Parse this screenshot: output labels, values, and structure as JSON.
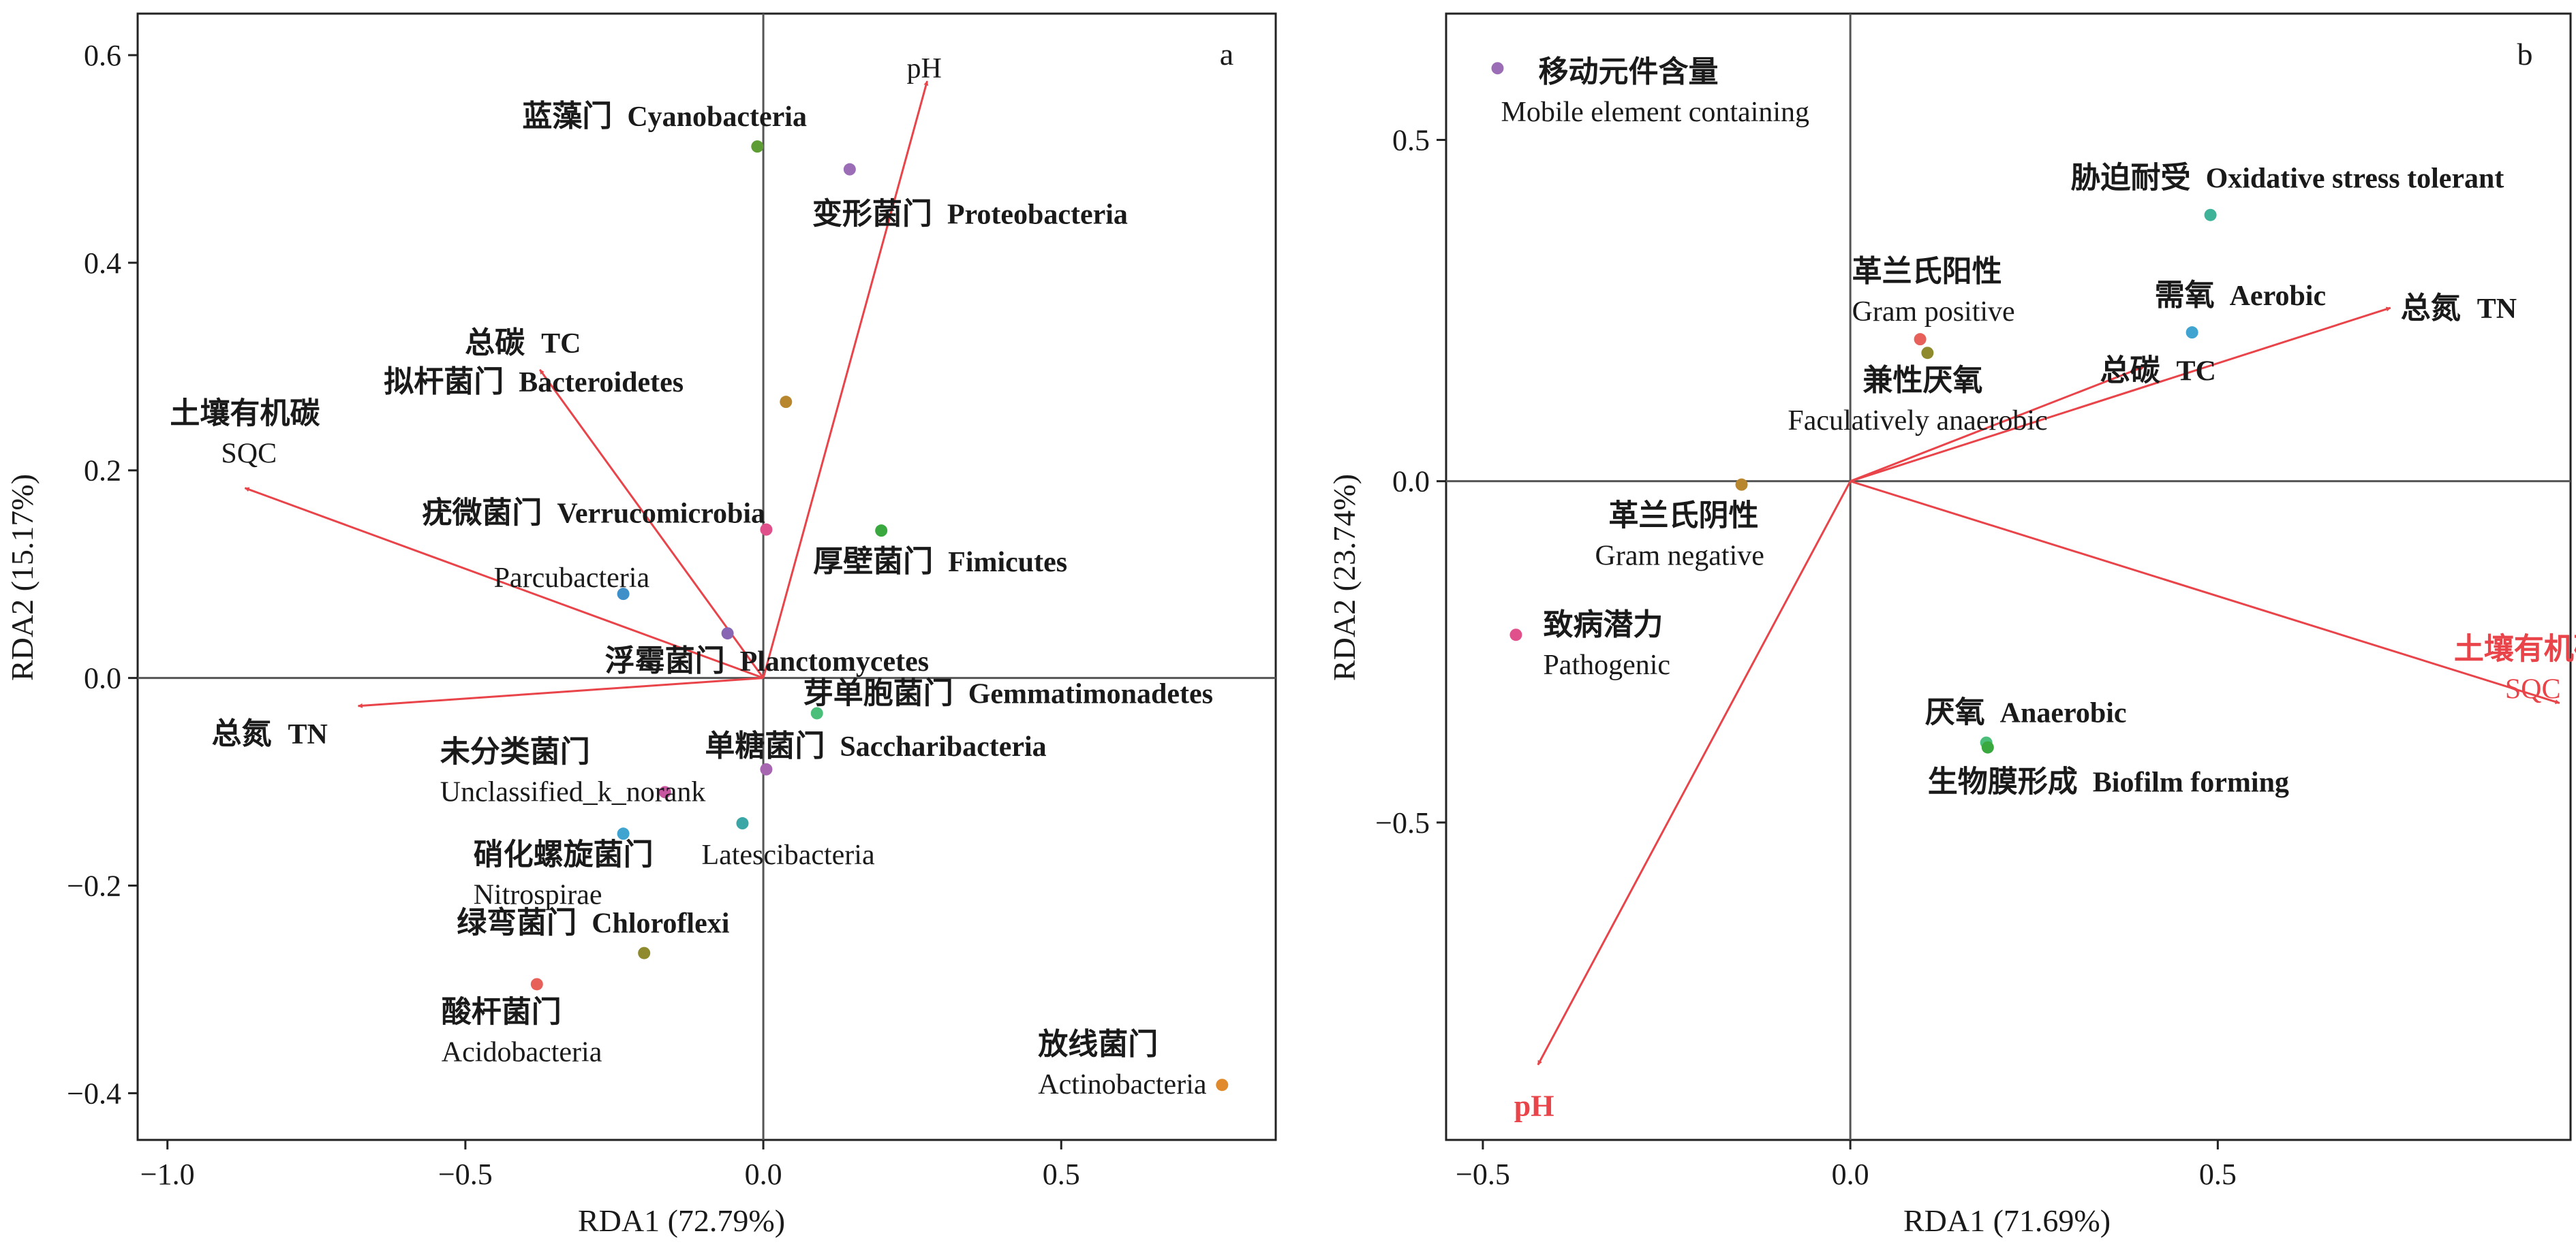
{
  "chart_data": [
    {
      "type": "scatter",
      "panel": "a",
      "xlabel": "RDA1 (72.79%)",
      "ylabel": "RDA2 (15.17%)",
      "xlim": [
        -1.05,
        0.86
      ],
      "ylim": [
        -0.445,
        0.64
      ],
      "xticks": [
        -1.0,
        -0.5,
        0.0,
        0.5
      ],
      "xtick_labels": [
        "−1.0",
        "−0.5",
        "0.0",
        "0.5"
      ],
      "yticks": [
        -0.4,
        -0.2,
        0.0,
        0.2,
        0.4,
        0.6
      ],
      "ytick_labels": [
        "−0.4",
        "−0.2",
        "0.0",
        "0.2",
        "0.4",
        "0.6"
      ],
      "arrows": [
        {
          "zh": "pH",
          "en": "",
          "x": 0.275,
          "y": 0.575,
          "color": "#e8444a"
        },
        {
          "zh": "总碳",
          "en": "TC",
          "x": -0.375,
          "y": 0.297,
          "color": "#e8444a"
        },
        {
          "zh": "土壤有机碳",
          "en": "SQC",
          "x": -0.87,
          "y": 0.183,
          "color": "#e8444a"
        },
        {
          "zh": "总氮",
          "en": "TN",
          "x": -0.68,
          "y": -0.027,
          "color": "#e8444a"
        }
      ],
      "points": [
        {
          "zh": "蓝藻门",
          "en": "Cyanobacteria",
          "x": -0.01,
          "y": 0.512,
          "color": "#5e9d34"
        },
        {
          "zh": "变形菌门",
          "en": "Proteobacteria",
          "x": 0.145,
          "y": 0.49,
          "color": "#9b6db6"
        },
        {
          "zh": "拟杆菌门",
          "en": "Bacteroidetes",
          "x": 0.038,
          "y": 0.266,
          "color": "#b8862c"
        },
        {
          "zh": "疣微菌门",
          "en": "Verrucomicrobia",
          "x": 0.005,
          "y": 0.143,
          "color": "#e0508a"
        },
        {
          "zh": "厚壁菌门",
          "en": "Fimicutes",
          "x": 0.198,
          "y": 0.142,
          "color": "#39a83f"
        },
        {
          "zh": "",
          "en": "Parcubacteria",
          "x": -0.235,
          "y": 0.081,
          "color": "#3f8fc8"
        },
        {
          "zh": "浮霉菌门",
          "en": "Planctomycetes",
          "x": -0.06,
          "y": 0.043,
          "color": "#8866b3"
        },
        {
          "zh": "芽单胞菌门",
          "en": "Gemmatimonadetes",
          "x": 0.09,
          "y": -0.034,
          "color": "#4bbf7a"
        },
        {
          "zh": "单糖菌门",
          "en": "Saccharibacteria",
          "x": 0.005,
          "y": -0.088,
          "color": "#a766b0"
        },
        {
          "zh": "未分类菌门",
          "en": "Unclassified_k_norank",
          "x": -0.165,
          "y": -0.11,
          "color": "#c855a0"
        },
        {
          "zh": "",
          "en": "Latescibacteria",
          "x": -0.035,
          "y": -0.14,
          "color": "#3aa6a6"
        },
        {
          "zh": "硝化螺旋菌门",
          "en": "Nitrospirae",
          "x": -0.235,
          "y": -0.15,
          "color": "#3fa4cf"
        },
        {
          "zh": "绿弯菌门",
          "en": "Chloroflexi",
          "x": -0.2,
          "y": -0.265,
          "color": "#8f8a2e"
        },
        {
          "zh": "酸杆菌门",
          "en": "Acidobacteria",
          "x": -0.38,
          "y": -0.295,
          "color": "#e8605a"
        },
        {
          "zh": "放线菌门",
          "en": "Actinobacteria",
          "x": 0.77,
          "y": -0.392,
          "color": "#e08a2c"
        }
      ]
    },
    {
      "type": "scatter",
      "panel": "b",
      "xlabel": "RDA1 (71.69%)",
      "ylabel": "RDA2 (23.74%)",
      "xlim": [
        -0.55,
        0.98
      ],
      "ylim": [
        -0.965,
        0.685
      ],
      "xticks": [
        -0.5,
        0.0,
        0.5
      ],
      "xtick_labels": [
        "−0.5",
        "0.0",
        "0.5"
      ],
      "yticks": [
        -0.5,
        0.0,
        0.5
      ],
      "ytick_labels": [
        "−0.5",
        "0.0",
        "0.5"
      ],
      "arrows": [
        {
          "zh": "总氮",
          "en": "TN",
          "x": 0.735,
          "y": 0.254,
          "color": "#e8444a"
        },
        {
          "zh": "总碳",
          "en": "TC",
          "x": 0.4,
          "y": 0.168,
          "color": "#e8444a"
        },
        {
          "zh": "土壤有机碳",
          "en": "SQC",
          "x": 0.965,
          "y": -0.325,
          "color": "#e8444a"
        },
        {
          "zh": "pH",
          "en": "",
          "x": -0.425,
          "y": -0.855,
          "color": "#e8444a"
        }
      ],
      "points": [
        {
          "zh": "移动元件含量",
          "en": "Mobile element containing",
          "x": -0.48,
          "y": 0.605,
          "color": "#9b6db6"
        },
        {
          "zh": "胁迫耐受",
          "en": "Oxidative stress tolerant",
          "x": 0.49,
          "y": 0.39,
          "color": "#3fb39a"
        },
        {
          "zh": "革兰氏阳性",
          "en": "Gram positive",
          "x": 0.095,
          "y": 0.208,
          "color": "#e8605a"
        },
        {
          "zh": "兼性厌氧",
          "en": "Faculatively anaerobic",
          "x": 0.105,
          "y": 0.188,
          "color": "#8f8a2e"
        },
        {
          "zh": "需氧",
          "en": "Aerobic",
          "x": 0.465,
          "y": 0.218,
          "color": "#3fa4cf"
        },
        {
          "zh": "革兰氏阴性",
          "en": "Gram negative",
          "x": -0.148,
          "y": -0.005,
          "color": "#b8862c"
        },
        {
          "zh": "致病潜力",
          "en": "Pathogenic",
          "x": -0.455,
          "y": -0.225,
          "color": "#e0508a"
        },
        {
          "zh": "厌氧",
          "en": "Anaerobic",
          "x": 0.185,
          "y": -0.383,
          "color": "#4bbf7a"
        },
        {
          "zh": "生物膜形成",
          "en": "Biofilm forming",
          "x": 0.187,
          "y": -0.39,
          "color": "#39a83f"
        }
      ]
    }
  ],
  "panel_letters": [
    "a",
    "b"
  ]
}
